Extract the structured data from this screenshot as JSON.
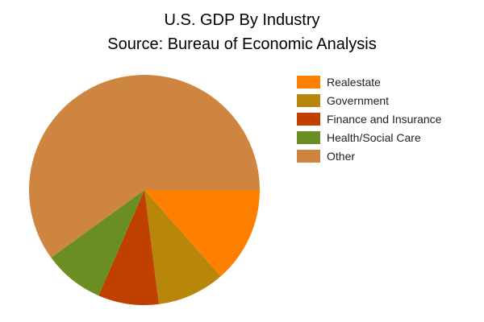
{
  "chart_data": {
    "type": "pie",
    "title": "U.S. GDP By Industry",
    "subtitle": "Source: Bureau of Economic Analysis",
    "start_angle_deg": 0,
    "direction": "clockwise",
    "legend_position": "right",
    "slices": [
      {
        "label": "Realestate",
        "value": 13.5,
        "color": "#ff8000"
      },
      {
        "label": "Government",
        "value": 9.5,
        "color": "#b8860b"
      },
      {
        "label": "Finance and Insurance",
        "value": 8.5,
        "color": "#c04000"
      },
      {
        "label": "Health/Social Care",
        "value": 8.5,
        "color": "#6b8e23"
      },
      {
        "label": "Other",
        "value": 60.0,
        "color": "#cd853f"
      }
    ]
  }
}
